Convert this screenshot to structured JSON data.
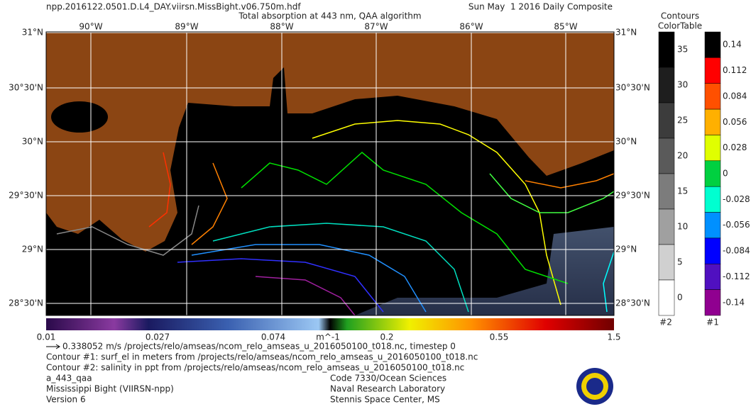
{
  "header": {
    "file": "npp.2016122.0501.D.L4_DAY.viirsn.MissBight.v06.750m.hdf",
    "title": "Total absorption at 443 nm, QAA algorithm",
    "date": "Sun May  1 2016 Daily Composite"
  },
  "map": {
    "lon_labels": [
      "90°W",
      "89°W",
      "88°W",
      "87°W",
      "86°W",
      "85°W"
    ],
    "lat_labels": [
      "31°N",
      "30°30'N",
      "30°N",
      "29°30'N",
      "29°N",
      "28°30'N"
    ]
  },
  "colorbar": {
    "labels": [
      "0.01",
      "0.027",
      "0.074",
      "m^-1",
      "0.2",
      "0.55",
      "1.5"
    ]
  },
  "contour_table": {
    "title": [
      "Contours",
      "ColorTable"
    ],
    "table2": {
      "labels": [
        "35",
        "30",
        "25",
        "20",
        "15",
        "10",
        "5",
        "0"
      ],
      "id": "#2"
    },
    "table1": {
      "labels": [
        "0.14",
        "0.112",
        "0.084",
        "0.056",
        "0.028",
        "0",
        "-0.028",
        "-0.056",
        "-0.084",
        "-0.112",
        "-0.14"
      ],
      "id": "#1"
    }
  },
  "footer": {
    "left": [
      "0.338052 m/s /projects/relo/amseas/ncom_relo_amseas_u_2016050100_t018.nc, timestep 0",
      "Contour #1: surf_el in meters from /projects/relo/amseas/ncom_relo_amseas_u_2016050100_t018.nc",
      "Contour #2: salinity in ppt from /projects/relo/amseas/ncom_relo_amseas_u_2016050100_t018.nc",
      "a_443_qaa",
      "Mississippi Bight (VIIRSN-npp)",
      "Version 6"
    ],
    "right": [
      "Code 7330/Ocean Sciences",
      "Naval Research Laboratory",
      "Stennis Space Center, MS"
    ]
  }
}
